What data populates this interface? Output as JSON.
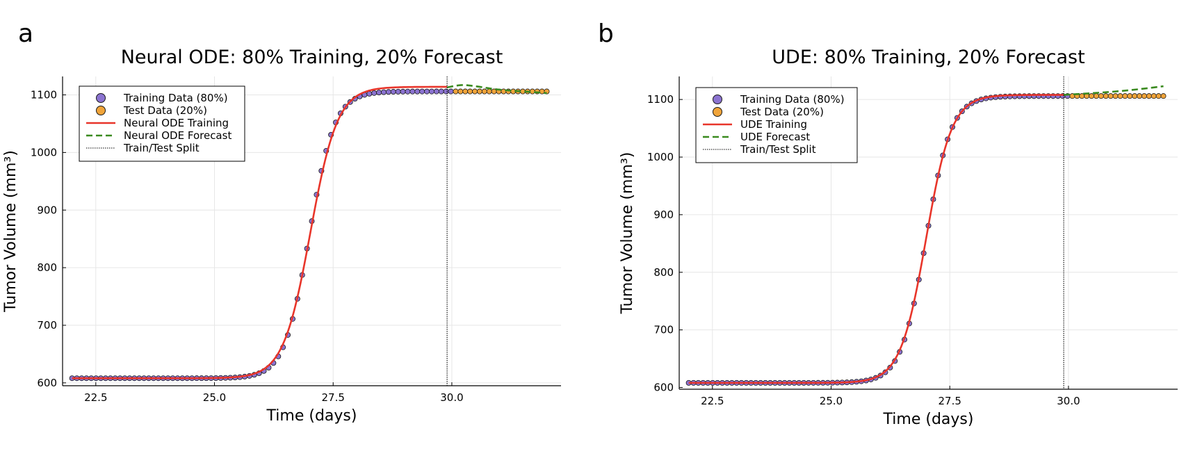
{
  "figure": {
    "panel_labels": [
      "a",
      "b"
    ]
  },
  "chart_data": [
    {
      "type": "line",
      "panel": "a",
      "title": "Neural ODE: 80% Training, 20% Forecast",
      "xlabel": "Time (days)",
      "ylabel": "Tumor Volume (mm³)",
      "xlim": [
        21.8,
        32.3
      ],
      "ylim": [
        595,
        1132
      ],
      "xticks": [
        22.5,
        25.0,
        27.5,
        30.0
      ],
      "xtick_labels": [
        "22.5",
        "25.0",
        "27.5",
        "30.0"
      ],
      "yticks": [
        600,
        700,
        800,
        900,
        1000,
        1100
      ],
      "ytick_labels": [
        "600",
        "700",
        "800",
        "900",
        "1000",
        "1100"
      ],
      "grid": true,
      "legend_position": "top-left",
      "split_x": 29.9,
      "data_model": {
        "kind": "logistic",
        "base": 608,
        "amplitude": 498,
        "midpoint": 27.0,
        "rate": 3.8,
        "x_start": 22.0,
        "x_end": 32.0,
        "n_train": 80,
        "n_test": 20
      },
      "legend": [
        {
          "label": "Training Data (80%)",
          "kind": "marker",
          "color": "#8b73d0"
        },
        {
          "label": "Test Data (20%)",
          "kind": "marker",
          "color": "#f0a43a"
        },
        {
          "label": "Neural ODE Training",
          "kind": "line",
          "color": "#e8352a"
        },
        {
          "label": "Neural ODE Forecast",
          "kind": "dashed",
          "color": "#3a8a1f"
        },
        {
          "label": "Train/Test Split",
          "kind": "dotted",
          "color": "#000000"
        }
      ],
      "training_fit": {
        "kind": "logistic",
        "base": 608,
        "amplitude": 506,
        "midpoint": 27.02,
        "rate": 3.5,
        "x_start": 22.0,
        "x_end": 29.9
      },
      "forecast": {
        "x": [
          29.9,
          30.2,
          30.5,
          30.9,
          31.3,
          31.7,
          32.0
        ],
        "y": [
          1113,
          1117,
          1115,
          1110,
          1107,
          1105,
          1103
        ]
      }
    },
    {
      "type": "line",
      "panel": "b",
      "title": "UDE: 80% Training, 20% Forecast",
      "xlabel": "Time (days)",
      "ylabel": "Tumor Volume (mm³)",
      "xlim": [
        21.8,
        32.3
      ],
      "ylim": [
        597,
        1140
      ],
      "xticks": [
        22.5,
        25.0,
        27.5,
        30.0
      ],
      "xtick_labels": [
        "22.5",
        "25.0",
        "27.5",
        "30.0"
      ],
      "yticks": [
        600,
        700,
        800,
        900,
        1000,
        1100
      ],
      "ytick_labels": [
        "600",
        "700",
        "800",
        "900",
        "1000",
        "1100"
      ],
      "grid": true,
      "legend_position": "top-left",
      "split_x": 29.9,
      "data_model": {
        "kind": "logistic",
        "base": 608,
        "amplitude": 498,
        "midpoint": 27.0,
        "rate": 3.8,
        "x_start": 22.0,
        "x_end": 32.0,
        "n_train": 80,
        "n_test": 20
      },
      "legend": [
        {
          "label": "Training Data (80%)",
          "kind": "marker",
          "color": "#8b73d0"
        },
        {
          "label": "Test Data (20%)",
          "kind": "marker",
          "color": "#f0a43a"
        },
        {
          "label": "UDE Training",
          "kind": "line",
          "color": "#e8352a"
        },
        {
          "label": "UDE Forecast",
          "kind": "dashed",
          "color": "#3a8a1f"
        },
        {
          "label": "Train/Test Split",
          "kind": "dotted",
          "color": "#000000"
        }
      ],
      "training_fit": {
        "kind": "logistic",
        "base": 608,
        "amplitude": 500,
        "midpoint": 27.0,
        "rate": 3.7,
        "x_start": 22.0,
        "x_end": 29.9
      },
      "forecast": {
        "x": [
          29.9,
          30.5,
          31.0,
          31.5,
          32.0
        ],
        "y": [
          1108,
          1111,
          1114,
          1118,
          1123
        ]
      }
    }
  ]
}
